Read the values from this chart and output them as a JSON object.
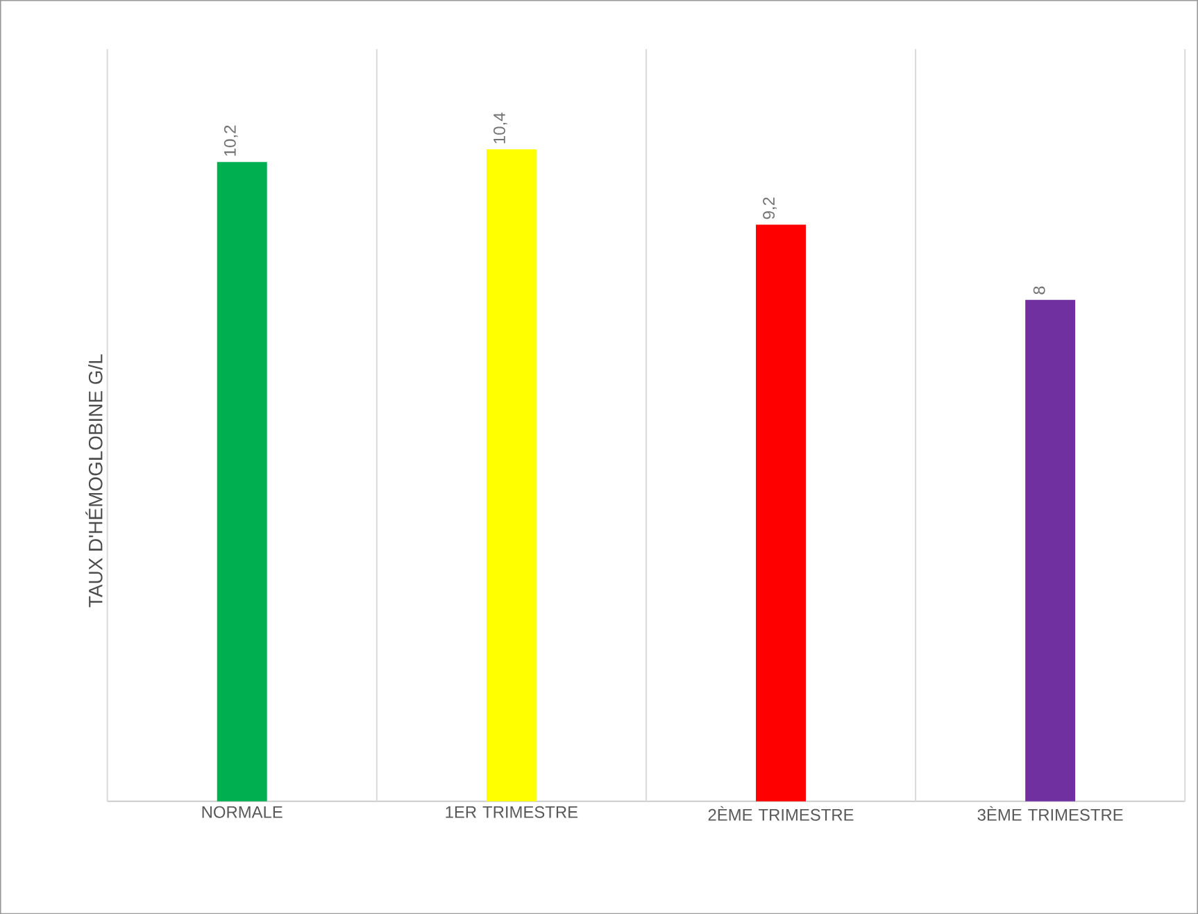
{
  "chart_data": {
    "type": "bar",
    "ylabel": "TAUX D'HÉMOGLOBINE G/L",
    "categories": [
      "NORMALE",
      "1ER TRIMESTRE",
      "2ÈME TRIMESTRE",
      "3ÈME TRIMESTRE"
    ],
    "values": [
      10.2,
      10.4,
      9.2,
      8
    ],
    "value_labels": [
      "10,2",
      "10,4",
      "9,2",
      "8"
    ],
    "colors": [
      "#00b050",
      "#ffff00",
      "#ff0000",
      "#7030a0"
    ],
    "ylim": [
      0,
      12
    ],
    "grid": "x",
    "tick_labels": "x"
  }
}
